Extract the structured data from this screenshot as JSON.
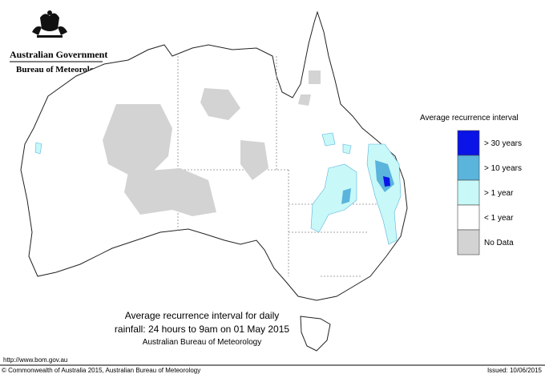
{
  "header": {
    "government": "Australian Government",
    "bureau": "Bureau of Meteorology"
  },
  "legend": {
    "title": "Average recurrence interval",
    "items": [
      {
        "label": "> 30 years",
        "color": "#0a14e6"
      },
      {
        "label": "> 10 years",
        "color": "#5ab4dc"
      },
      {
        "label": "> 1 year",
        "color": "#c8f8f8"
      },
      {
        "label": "< 1 year",
        "color": "#ffffff"
      },
      {
        "label": "No Data",
        "color": "#d3d3d3"
      }
    ]
  },
  "caption": {
    "line1": "Average recurrence interval for daily",
    "line2": "rainfall: 24 hours to 9am on 01 May 2015",
    "source": "Australian Bureau of Meteorology"
  },
  "footer": {
    "url": "http://www.bom.gov.au",
    "copyright": "© Commonwealth of Australia 2015, Australian Bureau of Meteorology",
    "issued": "Issued: 10/06/2015"
  }
}
